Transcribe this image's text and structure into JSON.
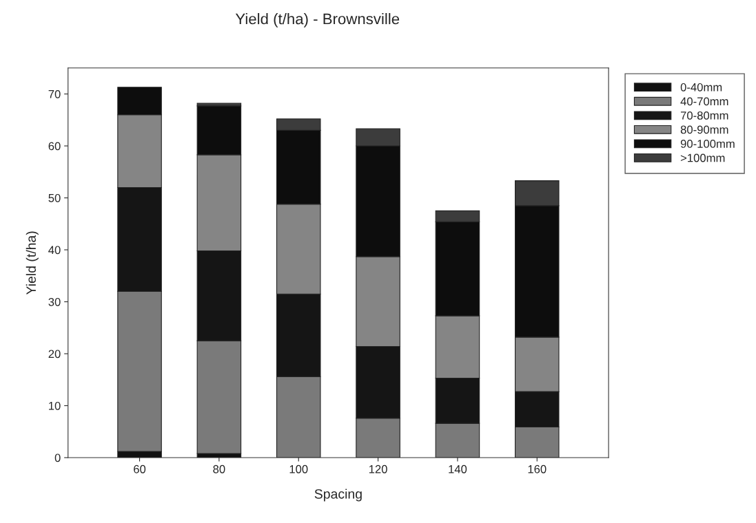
{
  "chart_data": {
    "type": "bar",
    "title": "Yield (t/ha) - Brownsville",
    "xlabel": "Spacing",
    "ylabel": "Yield (t/ha)",
    "categories": [
      "60",
      "80",
      "100",
      "120",
      "140",
      "160"
    ],
    "stacked": true,
    "series": [
      {
        "name": "0-40mm",
        "color": "#111111",
        "values": [
          1.2,
          0.8,
          null,
          null,
          null,
          null
        ]
      },
      {
        "name": "40-70mm",
        "color": "#7a7a7a",
        "values": [
          30.8,
          21.7,
          15.6,
          7.6,
          6.6,
          5.9
        ]
      },
      {
        "name": "70-80mm",
        "color": "#151515",
        "values": [
          20,
          17.3,
          15.9,
          13.8,
          8.7,
          6.8
        ]
      },
      {
        "name": "80-90mm",
        "color": "#858585",
        "values": [
          14,
          18.5,
          17.3,
          17.3,
          12.0,
          10.5
        ]
      },
      {
        "name": "90-100mm",
        "color": "#0d0d0d",
        "values": [
          5.3,
          9.4,
          14.2,
          21.3,
          18.1,
          25.3
        ]
      },
      {
        "name": ">100mm",
        "color": "#3c3c3c",
        "values": [
          null,
          0.5,
          2.2,
          3.3,
          2.1,
          4.8
        ]
      }
    ],
    "ylim": [
      0,
      75
    ],
    "yticks": [
      0,
      10,
      20,
      30,
      40,
      50,
      60,
      70
    ],
    "grid": false,
    "legend": "top right"
  }
}
